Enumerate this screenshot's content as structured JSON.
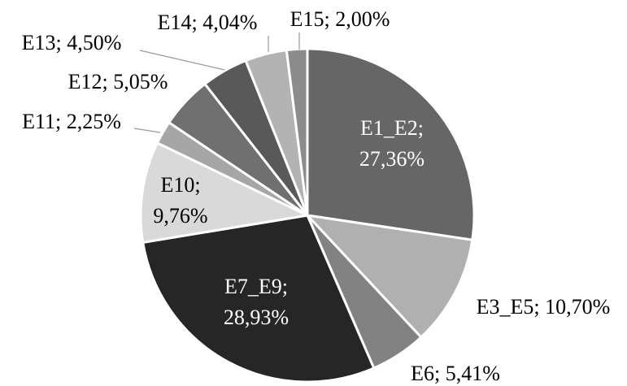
{
  "chart_data": {
    "type": "pie",
    "labels": [
      "E1_E2; 27,36%",
      "E3_E5; 10,70%",
      "E6; 5,41%",
      "E7_E9; 28,93%",
      "E10; 9,76%",
      "E11; 2,25%",
      "E12; 5,05%",
      "E13; 4,50%",
      "E14; 4,04%",
      "E15; 2,00%"
    ],
    "values": [
      27.36,
      10.7,
      5.41,
      28.93,
      9.76,
      2.25,
      5.05,
      4.5,
      4.04,
      2.0
    ],
    "colors": [
      "#666666",
      "#b0b0b0",
      "#828282",
      "#262626",
      "#d9d9d9",
      "#a6a6a6",
      "#707070",
      "#595959",
      "#b3b3b3",
      "#8c8c8c"
    ]
  }
}
